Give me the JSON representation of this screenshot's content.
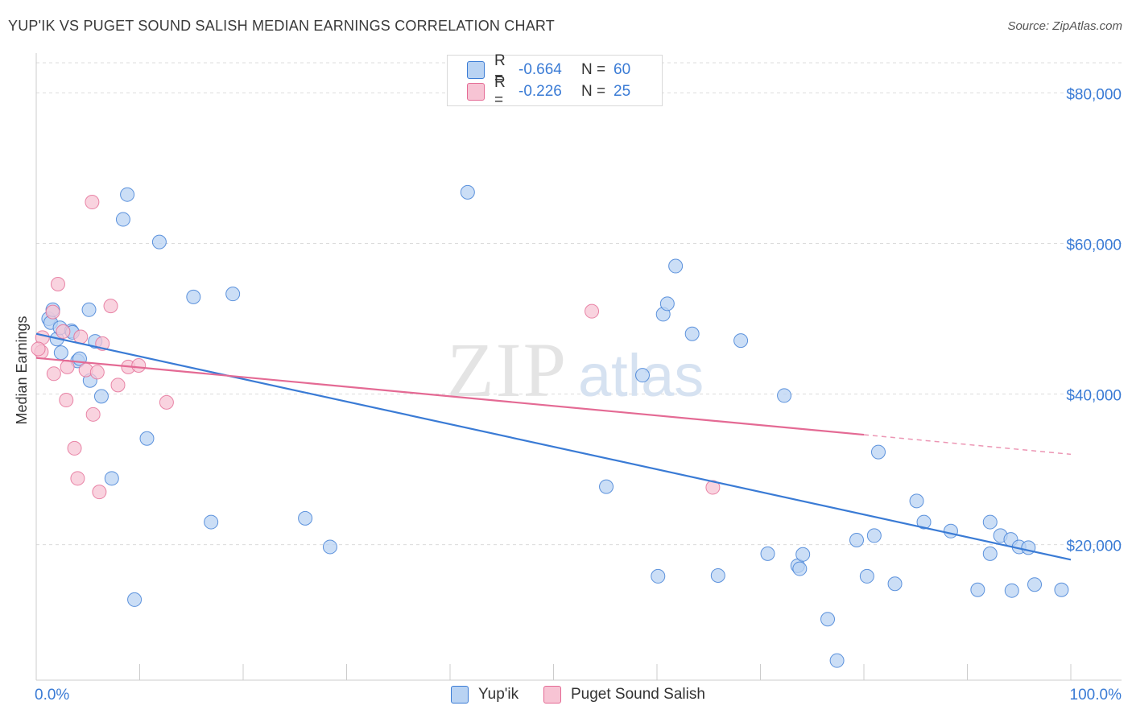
{
  "title": "YUP'IK VS PUGET SOUND SALISH MEDIAN EARNINGS CORRELATION CHART",
  "source": "Source: ZipAtlas.com",
  "watermark": {
    "zip": "ZIP",
    "atlas": "atlas"
  },
  "colors": {
    "blue": "#3a7bd5",
    "blue_fill": "#b9d3f3",
    "pink": "#e46a94",
    "pink_fill": "#f7c4d4",
    "grid": "#dddddd",
    "axis_text": "#3a7bd5"
  },
  "legend": {
    "rows": [
      {
        "r_label": "R =",
        "r_value": "-0.664",
        "n_label": "N =",
        "n_value": "60"
      },
      {
        "r_label": "R =",
        "r_value": "-0.226",
        "n_label": "N =",
        "n_value": "25"
      }
    ]
  },
  "bottom_legend": [
    "Yup'ik",
    "Puget Sound Salish"
  ],
  "chart_data": {
    "type": "scatter",
    "title": "YUP'IK VS PUGET SOUND SALISH MEDIAN EARNINGS CORRELATION CHART",
    "xlabel": "",
    "ylabel": "Median Earnings",
    "xlim": [
      0,
      100
    ],
    "ylim": [
      2000,
      84000
    ],
    "x_tick_labels": [
      "0.0%",
      "100.0%"
    ],
    "y_ticks": [
      20000,
      40000,
      60000,
      80000
    ],
    "y_tick_labels": [
      "$20,000",
      "$40,000",
      "$60,000",
      "$80,000"
    ],
    "series": [
      {
        "name": "Yup'ik",
        "color": "#3a7bd5",
        "fill": "#b9d3f3",
        "points": [
          [
            1.2,
            50000
          ],
          [
            1.4,
            49500
          ],
          [
            1.6,
            51200
          ],
          [
            2.0,
            47300
          ],
          [
            2.3,
            48800
          ],
          [
            2.4,
            45500
          ],
          [
            3.4,
            48400
          ],
          [
            3.5,
            48200
          ],
          [
            4.0,
            44400
          ],
          [
            4.2,
            44700
          ],
          [
            5.1,
            51200
          ],
          [
            5.2,
            41800
          ],
          [
            5.7,
            47000
          ],
          [
            6.3,
            39700
          ],
          [
            7.3,
            28800
          ],
          [
            8.4,
            63200
          ],
          [
            8.8,
            66500
          ],
          [
            9.5,
            12700
          ],
          [
            10.7,
            34100
          ],
          [
            11.9,
            60200
          ],
          [
            15.2,
            52900
          ],
          [
            16.9,
            23000
          ],
          [
            19.0,
            53300
          ],
          [
            26.0,
            23500
          ],
          [
            28.4,
            19700
          ],
          [
            41.7,
            66800
          ],
          [
            55.1,
            27700
          ],
          [
            58.6,
            42500
          ],
          [
            60.1,
            15800
          ],
          [
            60.6,
            50600
          ],
          [
            61.0,
            52000
          ],
          [
            61.8,
            57000
          ],
          [
            63.4,
            48000
          ],
          [
            65.9,
            15900
          ],
          [
            68.1,
            47100
          ],
          [
            70.7,
            18800
          ],
          [
            72.3,
            39800
          ],
          [
            73.6,
            17200
          ],
          [
            73.8,
            16800
          ],
          [
            74.1,
            18700
          ],
          [
            76.5,
            10100
          ],
          [
            77.4,
            4600
          ],
          [
            79.3,
            20600
          ],
          [
            80.3,
            15800
          ],
          [
            81.0,
            21200
          ],
          [
            81.4,
            32300
          ],
          [
            83.0,
            14800
          ],
          [
            85.1,
            25800
          ],
          [
            85.8,
            23000
          ],
          [
            88.4,
            21800
          ],
          [
            91.0,
            14000
          ],
          [
            92.2,
            23000
          ],
          [
            92.2,
            18800
          ],
          [
            93.2,
            21200
          ],
          [
            94.2,
            20700
          ],
          [
            94.3,
            13900
          ],
          [
            95.0,
            19700
          ],
          [
            95.9,
            19600
          ],
          [
            96.5,
            14700
          ],
          [
            99.1,
            14000
          ]
        ],
        "trend": {
          "x": [
            0,
            100
          ],
          "y": [
            48000,
            18000
          ]
        }
      },
      {
        "name": "Puget Sound Salish",
        "color": "#e46a94",
        "fill": "#f7c4d4",
        "points": [
          [
            0.5,
            45600
          ],
          [
            0.6,
            47500
          ],
          [
            1.6,
            50900
          ],
          [
            1.7,
            42700
          ],
          [
            2.1,
            54600
          ],
          [
            2.6,
            48300
          ],
          [
            2.9,
            39200
          ],
          [
            3.0,
            43600
          ],
          [
            3.7,
            32800
          ],
          [
            4.0,
            28800
          ],
          [
            4.3,
            47600
          ],
          [
            4.8,
            43200
          ],
          [
            5.4,
            65500
          ],
          [
            5.5,
            37300
          ],
          [
            5.9,
            42900
          ],
          [
            6.1,
            27000
          ],
          [
            6.4,
            46700
          ],
          [
            7.2,
            51700
          ],
          [
            7.9,
            41200
          ],
          [
            8.9,
            43600
          ],
          [
            9.9,
            43800
          ],
          [
            12.6,
            38900
          ],
          [
            53.7,
            51000
          ],
          [
            65.4,
            27600
          ],
          [
            0.2,
            46000
          ]
        ],
        "trend": {
          "x": [
            0,
            80
          ],
          "y": [
            44800,
            34600
          ]
        },
        "trend_extension": {
          "x": [
            80,
            100
          ],
          "y": [
            34600,
            32000
          ]
        }
      }
    ]
  }
}
